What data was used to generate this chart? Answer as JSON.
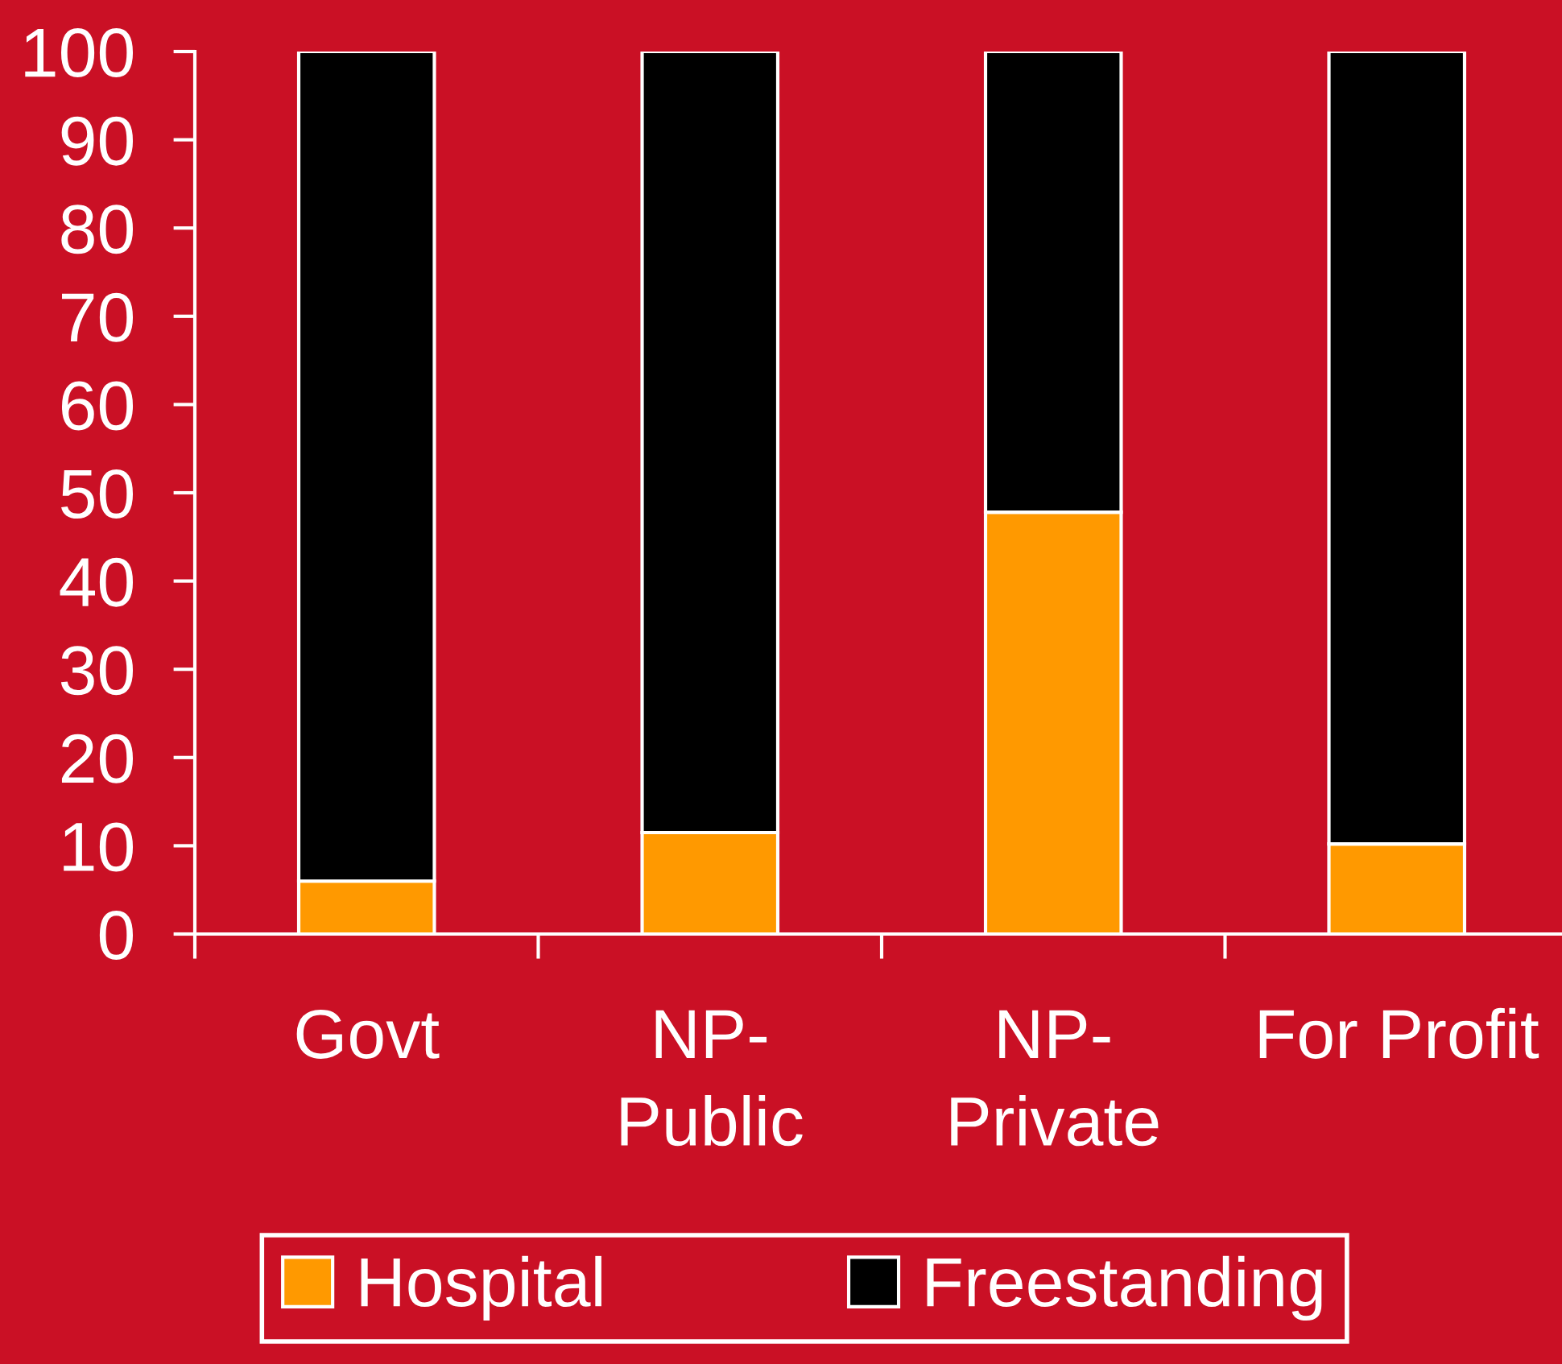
{
  "chart_data": {
    "type": "bar",
    "stacked": true,
    "categories": [
      "Govt",
      "NP-\nPublic",
      "NP-\nPrivate",
      "For Profit"
    ],
    "series": [
      {
        "name": "Hospital",
        "color": "#ff9900",
        "values": [
          6,
          11.5,
          47.8,
          10.2
        ]
      },
      {
        "name": "Freestanding",
        "color": "#000000",
        "values": [
          94,
          88.5,
          52.2,
          89.8
        ]
      }
    ],
    "ylim": [
      0,
      100
    ],
    "yticks": [
      0,
      10,
      20,
      30,
      40,
      50,
      60,
      70,
      80,
      90,
      100
    ],
    "legend": "bottom"
  }
}
